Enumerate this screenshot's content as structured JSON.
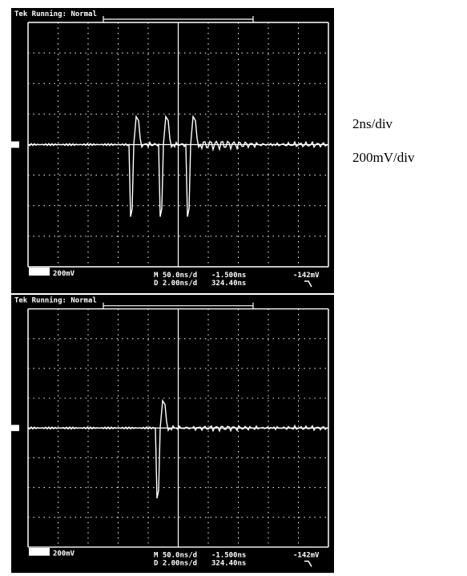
{
  "screens": [
    {
      "header": "Tek Running: Normal",
      "channel_scale": "200mV",
      "main_timebase": "M 50.0ns/d",
      "delay_timebase": "D 2.00ns/d",
      "trigger_position": "-1.500ns",
      "record_position": "324.40ns",
      "trigger_level": "-142mV"
    },
    {
      "header": "Tek Running: Normal",
      "channel_scale": "200mV",
      "main_timebase": "M 50.0ns/d",
      "delay_timebase": "D 2.00ns/d",
      "trigger_position": "-1.500ns",
      "record_position": "324.40ns",
      "trigger_level": "-142mV"
    }
  ],
  "caption": {
    "time_scale": "2ns/div",
    "voltage_scale": "200mV/div"
  }
}
